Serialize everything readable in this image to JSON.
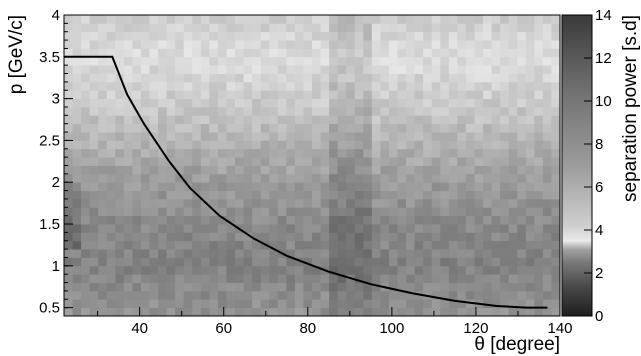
{
  "chart_data": {
    "type": "heatmap",
    "xlabel": "θ [degree]",
    "ylabel": "p [GeV/c]",
    "zlabel": "separation power [s.d]",
    "xlim": [
      22,
      140
    ],
    "ylim": [
      0.4,
      4.0
    ],
    "zlim": [
      0,
      14
    ],
    "x_ticks": [
      40,
      60,
      80,
      100,
      120,
      140
    ],
    "x_tick_labels": [
      "40",
      "60",
      "80",
      "100",
      "120",
      "140"
    ],
    "y_ticks": [
      0.5,
      1.0,
      1.5,
      2.0,
      2.5,
      3.0,
      3.5,
      4.0
    ],
    "y_tick_labels": [
      "0.5",
      "1",
      "1.5",
      "2",
      "2.5",
      "3",
      "3.5",
      "4"
    ],
    "z_ticks": [
      0,
      2,
      4,
      6,
      8,
      10,
      12,
      14
    ],
    "z_tick_labels": [
      "0",
      "2",
      "4",
      "6",
      "8",
      "10",
      "12",
      "14"
    ],
    "grid": false,
    "heatmap": {
      "x_bin_count": 58,
      "y_bin_count": 36,
      "x_range": [
        22,
        140
      ],
      "y_range": [
        0.4,
        4.0
      ],
      "approx_value_by_momentum": [
        {
          "p": 0.45,
          "separation_sigma": 8.5
        },
        {
          "p": 1.0,
          "separation_sigma": 9.5
        },
        {
          "p": 1.5,
          "separation_sigma": 9.0
        },
        {
          "p": 2.0,
          "separation_sigma": 8.0
        },
        {
          "p": 2.5,
          "separation_sigma": 6.5
        },
        {
          "p": 3.0,
          "separation_sigma": 5.0
        },
        {
          "p": 3.5,
          "separation_sigma": 4.0
        },
        {
          "p": 4.0,
          "separation_sigma": 5.0
        }
      ],
      "darker_band_theta": [
        86,
        96
      ]
    },
    "series": [
      {
        "type": "line",
        "color": "#000000",
        "x": [
          22,
          33.5,
          37,
          41,
          47,
          52,
          59,
          67,
          75,
          85,
          95,
          105,
          115,
          125,
          132,
          137
        ],
        "y": [
          3.5,
          3.5,
          3.05,
          2.7,
          2.25,
          1.93,
          1.6,
          1.33,
          1.12,
          0.93,
          0.78,
          0.67,
          0.58,
          0.52,
          0.5,
          0.5
        ]
      }
    ]
  }
}
